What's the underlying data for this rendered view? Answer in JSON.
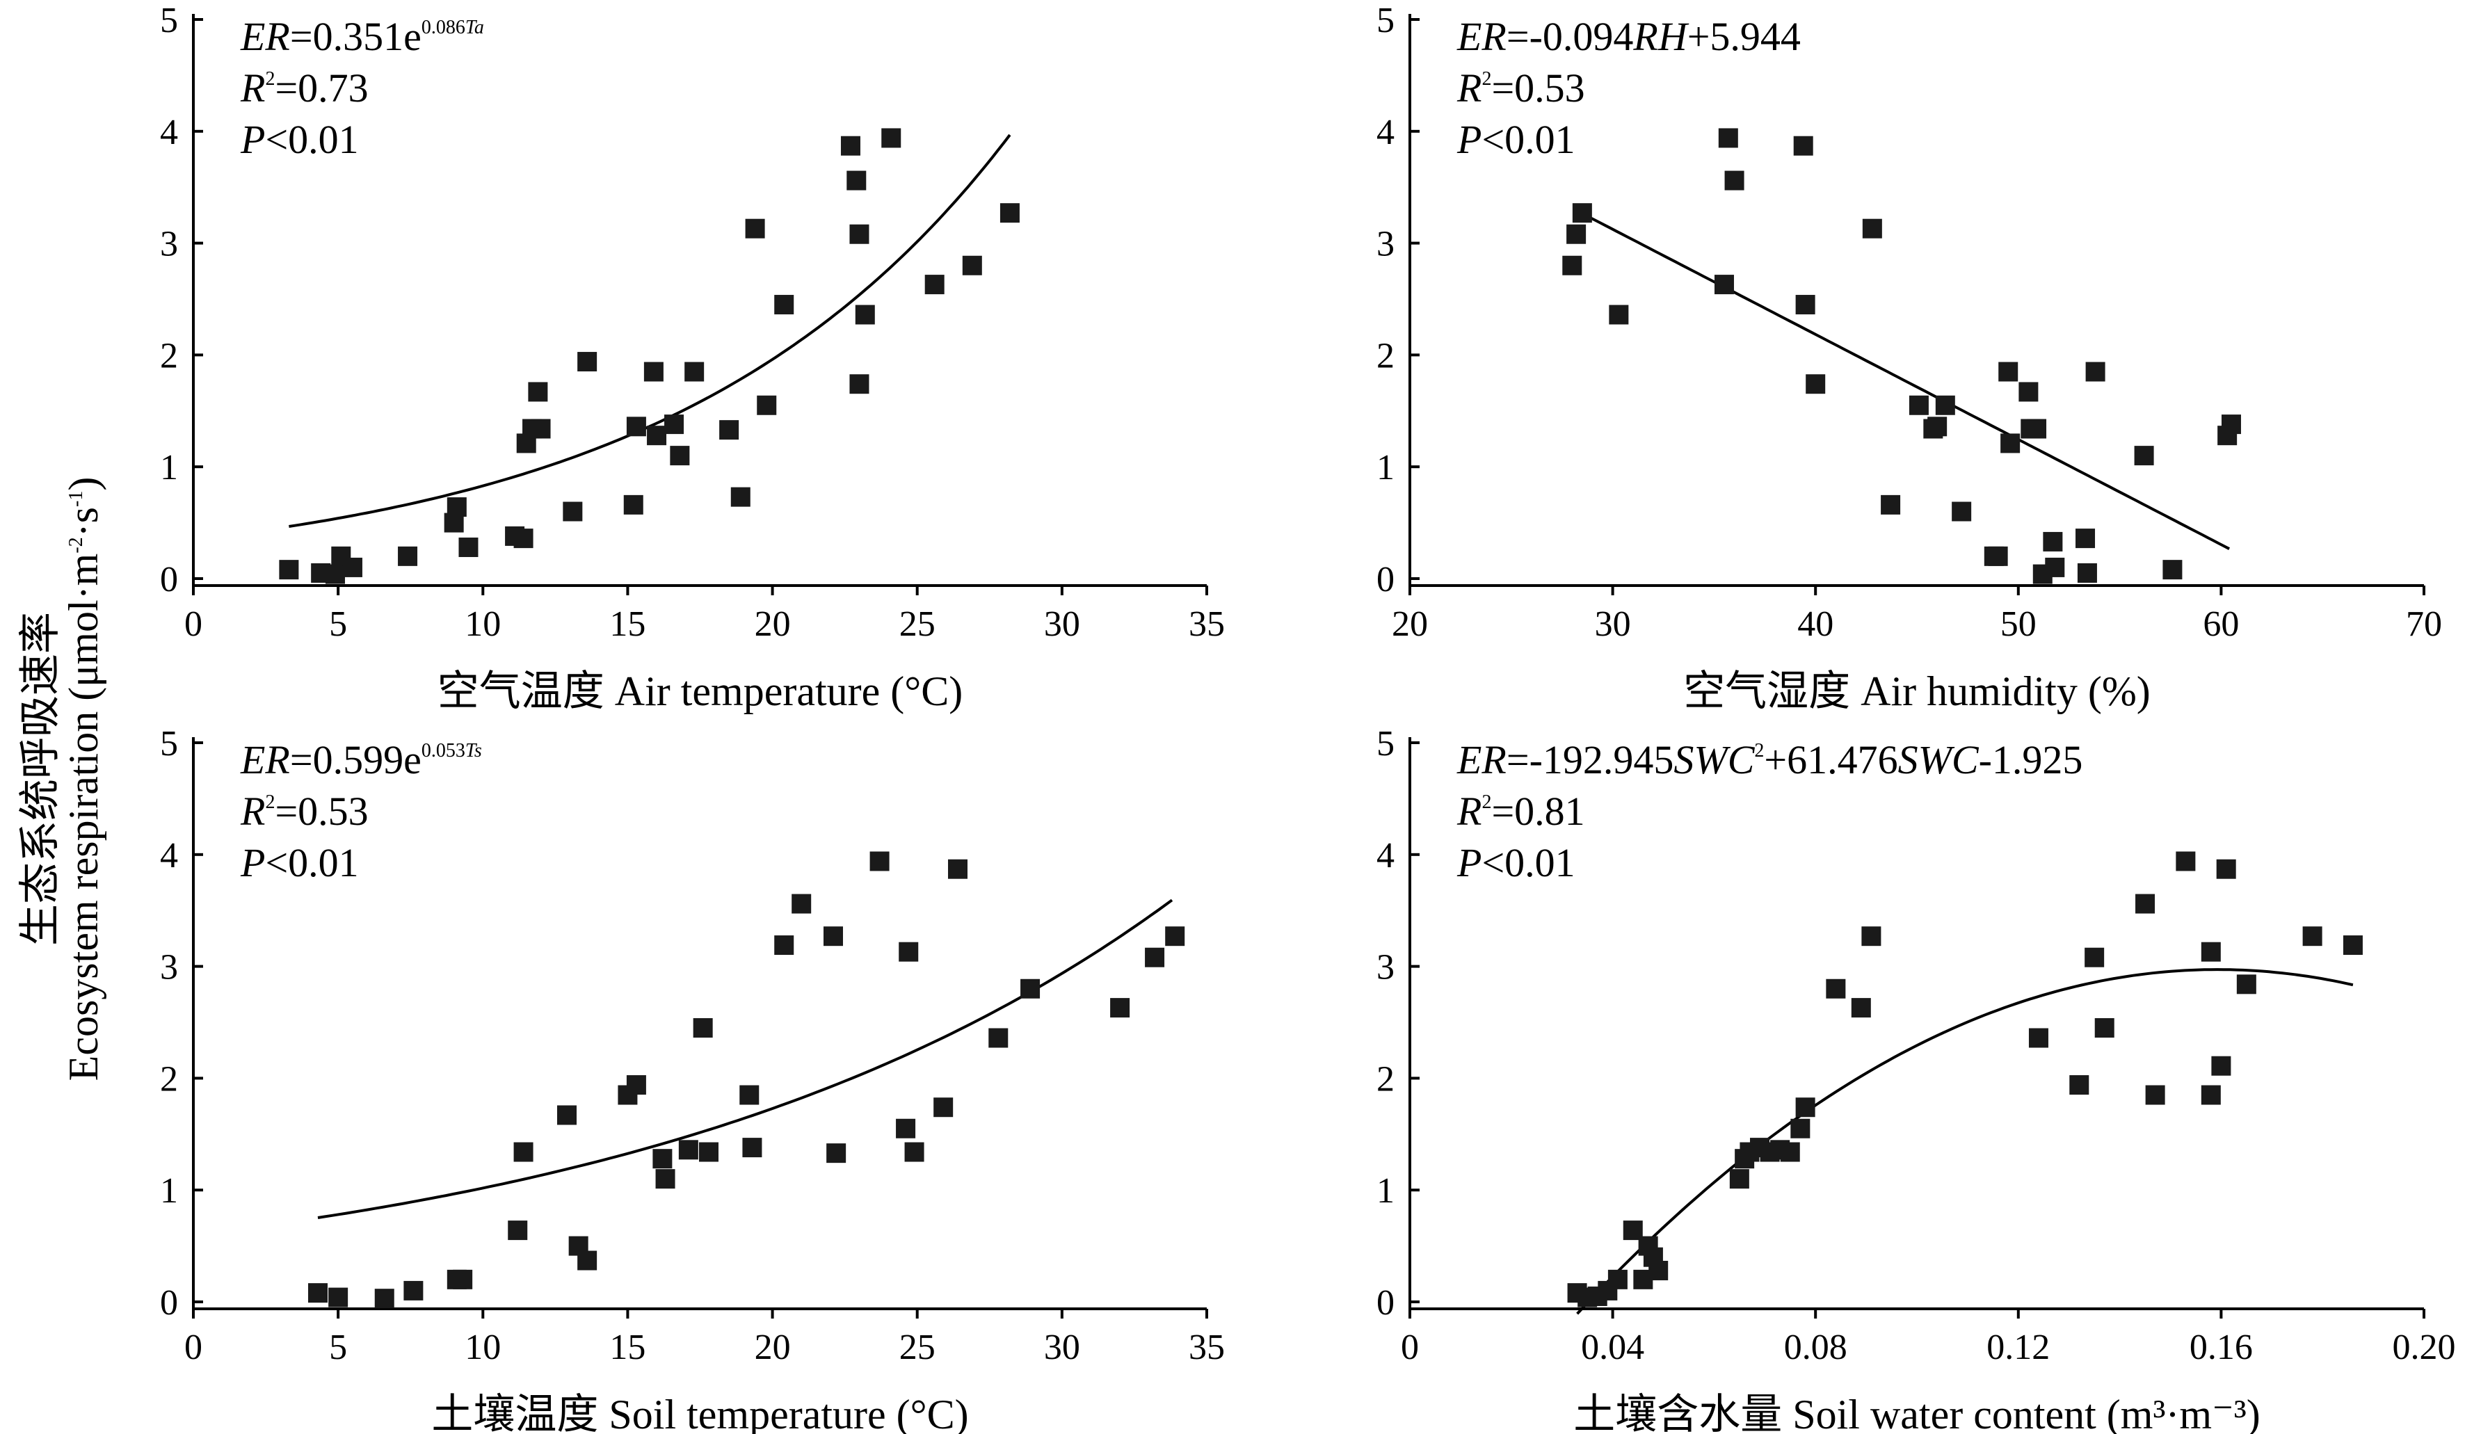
{
  "figure": {
    "ylabel_cn": "生态系统呼吸速率",
    "ylabel_en": "Ecosystem respiration (μmol·m",
    "ylabel_sup1": "-2",
    "ylabel_mid": "·s",
    "ylabel_sup2": "-1",
    "ylabel_end": ")"
  },
  "chart_data": [
    {
      "type": "scatter",
      "id": "ta",
      "xlabel": "空气温度 Air temperature (°C)",
      "ylabel": "",
      "xlim": [
        0,
        35
      ],
      "ylim": [
        0,
        5
      ],
      "xticks": [
        0,
        5,
        10,
        15,
        20,
        25,
        30,
        35
      ],
      "xtick_labels": [
        "0",
        "5",
        "10",
        "15",
        "20",
        "25",
        "30",
        "35"
      ],
      "yticks": [
        0,
        1,
        2,
        3,
        4,
        5
      ],
      "ytick_labels": [
        "0",
        "1",
        "2",
        "3",
        "4",
        "5"
      ],
      "equation": {
        "line1_parts": [
          {
            "t": "ER",
            "style": "italic"
          },
          {
            "t": "=0.351e",
            "style": "normal"
          },
          {
            "t": "0.086",
            "style": "sup"
          },
          {
            "t": "Ta",
            "style": "sup-italic"
          }
        ],
        "r2_label": "R",
        "r2_sup": "2",
        "r2_value": "=0.73",
        "p_label": "P",
        "p_value": "<0.01"
      },
      "fit": {
        "kind": "exp",
        "a": 0.351,
        "b": 0.086,
        "x_range": [
          3.3,
          28.2
        ]
      },
      "x": [
        3.3,
        4.4,
        4.9,
        5.1,
        5.5,
        7.4,
        9.0,
        9.1,
        9.5,
        11.1,
        11.4,
        11.5,
        11.7,
        11.9,
        12.0,
        13.1,
        13.6,
        15.2,
        15.3,
        15.9,
        16.0,
        16.6,
        16.8,
        17.3,
        18.5,
        18.9,
        19.4,
        19.8,
        20.4,
        22.7,
        22.9,
        23.0,
        23.0,
        23.2,
        24.1,
        25.6,
        26.9,
        28.2
      ],
      "y": [
        0.08,
        0.05,
        0.04,
        0.2,
        0.1,
        0.2,
        0.5,
        0.64,
        0.28,
        0.38,
        0.36,
        1.21,
        1.34,
        1.67,
        1.34,
        0.6,
        1.94,
        0.66,
        1.36,
        1.85,
        1.28,
        1.38,
        1.1,
        1.85,
        1.33,
        0.73,
        3.13,
        1.55,
        2.45,
        3.87,
        3.56,
        3.08,
        1.74,
        2.36,
        3.94,
        2.63,
        2.8,
        3.27
      ]
    },
    {
      "type": "scatter",
      "id": "rh",
      "xlabel": "空气湿度 Air humidity (%)",
      "ylabel": "",
      "xlim": [
        20,
        70
      ],
      "ylim": [
        0,
        5
      ],
      "xticks": [
        20,
        30,
        40,
        50,
        60,
        70
      ],
      "xtick_labels": [
        "20",
        "30",
        "40",
        "50",
        "60",
        "70"
      ],
      "yticks": [
        0,
        1,
        2,
        3,
        4,
        5
      ],
      "ytick_labels": [
        "0",
        "1",
        "2",
        "3",
        "4",
        "5"
      ],
      "equation": {
        "line1_parts": [
          {
            "t": "ER",
            "style": "italic"
          },
          {
            "t": "=-0.094",
            "style": "normal"
          },
          {
            "t": "RH",
            "style": "italic"
          },
          {
            "t": "+5.944",
            "style": "normal"
          }
        ],
        "r2_label": "R",
        "r2_sup": "2",
        "r2_value": "=0.53",
        "p_label": "P",
        "p_value": "<0.01"
      },
      "fit": {
        "kind": "linear",
        "a": -0.094,
        "b": 5.944,
        "x_range": [
          28.3,
          60.4
        ]
      },
      "x": [
        28.0,
        28.2,
        28.5,
        30.3,
        35.5,
        35.7,
        36.0,
        39.4,
        39.5,
        40.0,
        42.8,
        43.7,
        45.1,
        45.8,
        46.0,
        46.4,
        47.2,
        48.8,
        49.0,
        49.5,
        49.6,
        50.5,
        50.6,
        50.9,
        51.2,
        51.7,
        51.8,
        53.3,
        53.4,
        53.8,
        56.2,
        57.6,
        60.3,
        60.5
      ],
      "y": [
        2.8,
        3.08,
        3.27,
        2.36,
        2.63,
        3.94,
        3.56,
        3.87,
        2.45,
        1.74,
        3.13,
        0.66,
        1.55,
        1.34,
        1.36,
        1.55,
        0.6,
        0.2,
        0.2,
        1.85,
        1.21,
        1.67,
        1.34,
        1.34,
        0.04,
        0.33,
        0.1,
        0.36,
        0.05,
        1.85,
        1.1,
        0.08,
        1.28,
        1.38
      ]
    },
    {
      "type": "scatter",
      "id": "ts",
      "xlabel": "土壤温度 Soil temperature (°C)",
      "ylabel": "",
      "xlim": [
        0,
        35
      ],
      "ylim": [
        0,
        5
      ],
      "xticks": [
        0,
        5,
        10,
        15,
        20,
        25,
        30,
        35
      ],
      "xtick_labels": [
        "0",
        "5",
        "10",
        "15",
        "20",
        "25",
        "30",
        "35"
      ],
      "yticks": [
        0,
        1,
        2,
        3,
        4,
        5
      ],
      "ytick_labels": [
        "0",
        "1",
        "2",
        "3",
        "4",
        "5"
      ],
      "equation": {
        "line1_parts": [
          {
            "t": "ER",
            "style": "italic"
          },
          {
            "t": "=0.599e",
            "style": "normal"
          },
          {
            "t": "0.053",
            "style": "sup"
          },
          {
            "t": "Ts",
            "style": "sup-italic"
          }
        ],
        "r2_label": "R",
        "r2_sup": "2",
        "r2_value": "=0.53",
        "p_label": "P",
        "p_value": "<0.01"
      },
      "fit": {
        "kind": "exp",
        "a": 0.599,
        "b": 0.053,
        "x_range": [
          4.3,
          33.8
        ]
      },
      "x": [
        4.3,
        5.0,
        6.6,
        7.6,
        9.1,
        9.3,
        11.2,
        11.4,
        12.9,
        13.3,
        13.6,
        15.0,
        15.3,
        16.2,
        16.3,
        17.1,
        17.8,
        17.6,
        19.2,
        19.3,
        20.4,
        21.0,
        22.1,
        22.2,
        23.7,
        24.6,
        24.7,
        24.9,
        25.9,
        26.4,
        27.8,
        28.9,
        32.0,
        33.2,
        33.9
      ],
      "y": [
        0.08,
        0.04,
        0.03,
        0.1,
        0.2,
        0.2,
        0.64,
        1.34,
        1.67,
        0.5,
        0.37,
        1.85,
        1.94,
        1.28,
        1.1,
        1.36,
        1.34,
        2.45,
        1.85,
        1.38,
        3.19,
        3.56,
        3.27,
        1.33,
        3.94,
        1.55,
        3.13,
        1.34,
        1.74,
        3.87,
        2.36,
        2.8,
        2.63,
        3.08,
        3.27
      ]
    },
    {
      "type": "scatter",
      "id": "swc",
      "xlabel": "土壤含水量 Soil water content (m³·m⁻³)",
      "ylabel": "",
      "xlim": [
        0,
        0.2
      ],
      "ylim": [
        0,
        5
      ],
      "xticks": [
        0,
        0.04,
        0.08,
        0.12,
        0.16,
        0.2
      ],
      "xtick_labels": [
        "0",
        "0.04",
        "0.08",
        "0.12",
        "0.16",
        "0.20"
      ],
      "yticks": [
        0,
        1,
        2,
        3,
        4,
        5
      ],
      "ytick_labels": [
        "0",
        "1",
        "2",
        "3",
        "4",
        "5"
      ],
      "equation": {
        "line1_parts": [
          {
            "t": "ER",
            "style": "italic"
          },
          {
            "t": "=-192.945",
            "style": "normal"
          },
          {
            "t": "SWC",
            "style": "italic"
          },
          {
            "t": "2",
            "style": "sup"
          },
          {
            "t": "+61.476",
            "style": "normal"
          },
          {
            "t": "SWC",
            "style": "italic"
          },
          {
            "t": "-1.925",
            "style": "normal"
          }
        ],
        "r2_label": "R",
        "r2_sup": "2",
        "r2_value": "=0.81",
        "p_label": "P",
        "p_value": "<0.01"
      },
      "fit": {
        "kind": "quad",
        "a": -192.945,
        "b": 61.476,
        "c": -1.925,
        "x_range": [
          0.033,
          0.186
        ]
      },
      "x": [
        0.033,
        0.035,
        0.037,
        0.039,
        0.041,
        0.044,
        0.046,
        0.047,
        0.048,
        0.049,
        0.065,
        0.066,
        0.067,
        0.069,
        0.071,
        0.073,
        0.075,
        0.077,
        0.078,
        0.084,
        0.089,
        0.091,
        0.124,
        0.132,
        0.135,
        0.137,
        0.145,
        0.147,
        0.153,
        0.158,
        0.158,
        0.16,
        0.161,
        0.165,
        0.178,
        0.186
      ],
      "y": [
        0.08,
        0.04,
        0.05,
        0.1,
        0.2,
        0.64,
        0.2,
        0.5,
        0.4,
        0.28,
        1.1,
        1.28,
        1.34,
        1.38,
        1.34,
        1.36,
        1.34,
        1.55,
        1.74,
        2.8,
        2.63,
        3.27,
        2.36,
        1.94,
        3.08,
        2.45,
        3.56,
        1.85,
        3.94,
        3.13,
        1.85,
        2.11,
        3.87,
        2.84,
        3.27,
        3.19
      ]
    }
  ]
}
